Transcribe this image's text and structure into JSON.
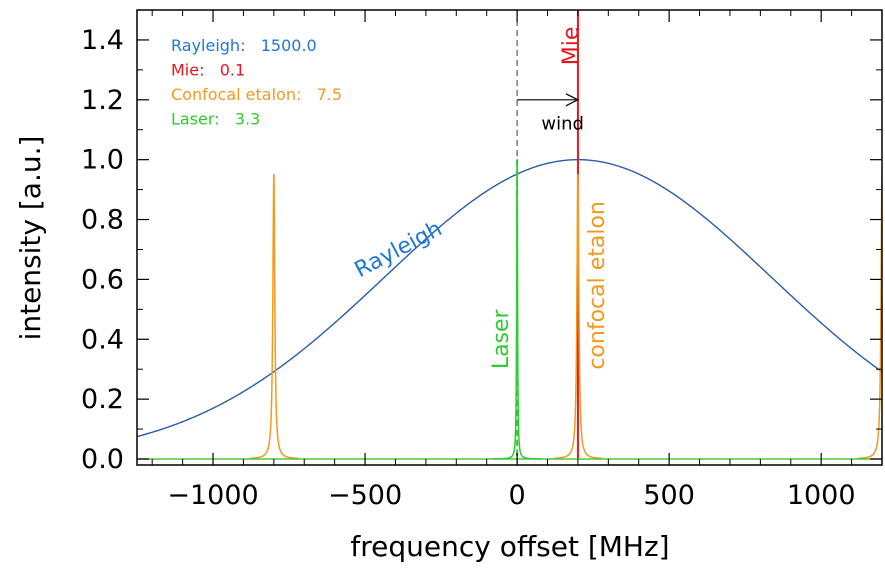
{
  "chart_data": {
    "type": "line",
    "xlabel": "frequency offset [MHz]",
    "ylabel": "intensity [a.u.]",
    "xlim": [
      -1250,
      1200
    ],
    "ylim": [
      -0.02,
      1.5
    ],
    "x_ticks": [
      -1000,
      -500,
      0,
      500,
      1000
    ],
    "x_tick_labels": [
      "−1000",
      "−500",
      "0",
      "500",
      "1000"
    ],
    "y_ticks": [
      0.0,
      0.2,
      0.4,
      0.6,
      0.8,
      1.0,
      1.2,
      1.4
    ],
    "y_tick_labels": [
      "0.0",
      "0.2",
      "0.4",
      "0.6",
      "0.8",
      "1.0",
      "1.2",
      "1.4"
    ],
    "legend": [
      {
        "name": "Rayleigh",
        "value": "1500.0",
        "color": "#1f77d4"
      },
      {
        "name": "Mie",
        "value": "0.1",
        "color": "#e8141e"
      },
      {
        "name": "Confocal etalon",
        "value": "7.5",
        "color": "#f29a1f"
      },
      {
        "name": "Laser",
        "value": "3.3",
        "color": "#2ecc2e"
      }
    ],
    "series": [
      {
        "name": "Rayleigh",
        "type": "gaussian",
        "center": 200,
        "peak": 1.0,
        "fwhm": 1500,
        "color": "#2a5caa"
      },
      {
        "name": "Mie",
        "type": "line",
        "x": 200,
        "y_start": 0.0,
        "y_end": 1.5,
        "color": "#e8141e"
      },
      {
        "name": "Confocal etalon",
        "type": "lorentzian-comb",
        "centers": [
          -800,
          200,
          1200
        ],
        "peak": 0.95,
        "fwhm": 7.5,
        "color": "#f29a1f"
      },
      {
        "name": "Laser",
        "type": "lorentzian",
        "center": 0,
        "peak": 1.0,
        "fwhm": 3.3,
        "color": "#2ecc2e"
      }
    ],
    "annotations": [
      {
        "text": "Rayleigh",
        "x": -380,
        "y": 0.68,
        "rotate": -28,
        "color": "#1f77d4"
      },
      {
        "text": "Mie",
        "x": 200,
        "y": 1.38,
        "rotate": -90,
        "color": "#e8141e"
      },
      {
        "text": "confocal etalon",
        "x": 285,
        "y": 0.58,
        "rotate": -90,
        "color": "#f29a1f"
      },
      {
        "text": "Laser",
        "x": -30,
        "y": 0.4,
        "rotate": -90,
        "color": "#2ecc2e"
      },
      {
        "text": "wind",
        "x": 80,
        "y": 1.1,
        "rotate": 0,
        "color": "#000000"
      }
    ],
    "wind_arrow": {
      "x_start": 0,
      "x_end": 200,
      "y": 1.2
    },
    "zero_line": {
      "x": 0,
      "style": "dashed"
    }
  }
}
